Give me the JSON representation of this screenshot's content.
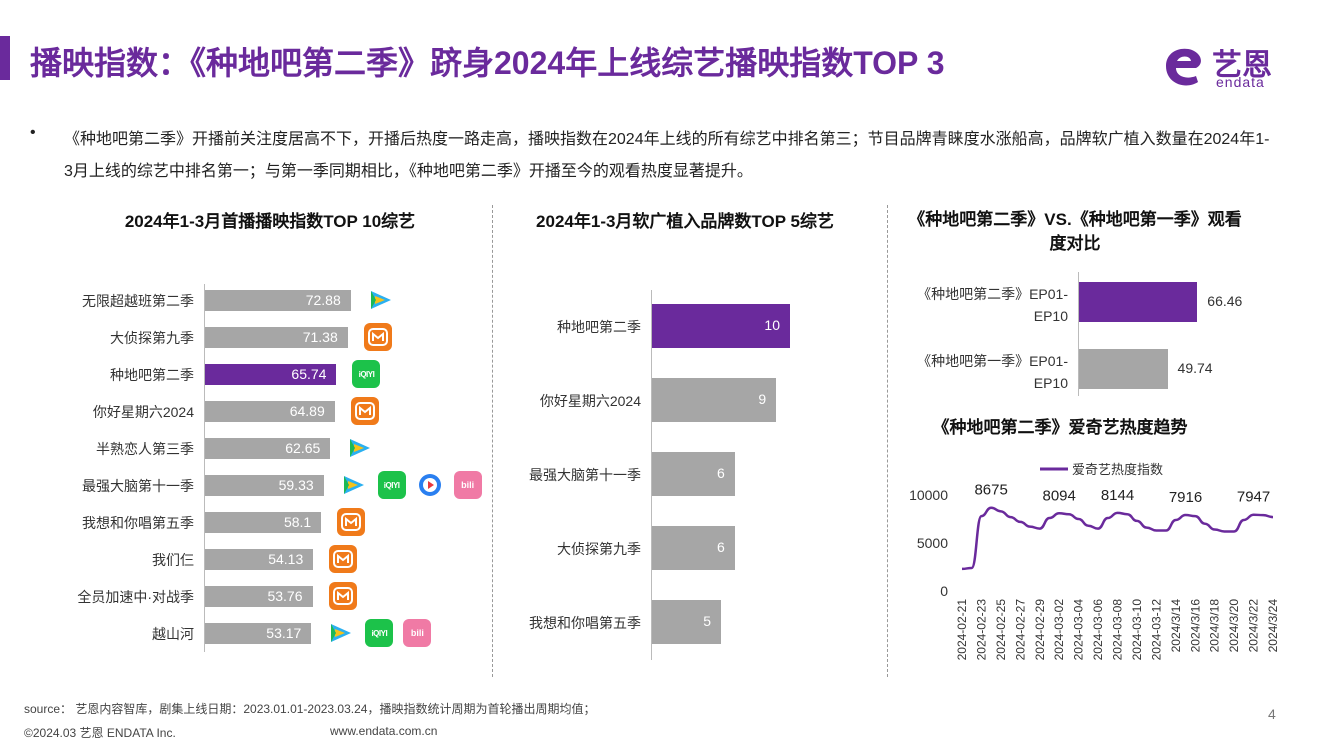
{
  "header": {
    "title": "播映指数：《种地吧第二季》跻身2024年上线综艺播映指数TOP 3",
    "logo_text": "艺恩",
    "logo_sub": "endata"
  },
  "summary": {
    "bullet": "•",
    "text": "《种地吧第二季》开播前关注度居高不下，开播后热度一路走高，播映指数在2024年上线的所有综艺中排名第三；节目品牌青睐度水涨船高，品牌软广植入数量在2024年1-3月上线的综艺中排名第一；与第一季同期相比，《种地吧第二季》开播至今的观看热度显著提升。"
  },
  "colors": {
    "accent": "#6a2a9c",
    "bar": "#a6a6a6"
  },
  "chart_data": [
    {
      "type": "bar",
      "title": "2024年1-3月首播播映指数TOP 10综艺",
      "categories": [
        "无限超越班第二季",
        "大侦探第九季",
        "种地吧第二季",
        "你好星期六2024",
        "半熟恋人第三季",
        "最强大脑第十一季",
        "我想和你唱第五季",
        "我们仨",
        "全员加速中·对战季",
        "越山河"
      ],
      "values": [
        72.88,
        71.38,
        65.74,
        64.89,
        62.65,
        59.33,
        58.1,
        54.13,
        53.76,
        53.17
      ],
      "value_labels": [
        "72.88",
        "71.38",
        "65.74",
        "64.89",
        "62.65",
        "59.33",
        "58.1",
        "54.13",
        "53.76",
        "53.17"
      ],
      "highlight": "种地吧第二季",
      "platform_icons": [
        [
          "tencent-icon"
        ],
        [
          "mango-icon"
        ],
        [
          "iqiyi-icon"
        ],
        [
          "mango-icon"
        ],
        [
          "tencent-icon"
        ],
        [
          "tencent-icon",
          "iqiyi-icon",
          "youku-icon",
          "bilibili-icon"
        ],
        [
          "mango-icon"
        ],
        [
          "mango-icon"
        ],
        [
          "mango-icon"
        ],
        [
          "tencent-icon",
          "iqiyi-icon",
          "bilibili-icon"
        ]
      ],
      "icon_text": {
        "iqiyi": "iQIYI",
        "bilibili": "bili"
      }
    },
    {
      "type": "bar",
      "title": "2024年1-3月软广植入品牌数TOP 5综艺",
      "categories": [
        "种地吧第二季",
        "你好星期六2024",
        "最强大脑第十一季",
        "大侦探第九季",
        "我想和你唱第五季"
      ],
      "values": [
        10,
        9,
        6,
        6,
        5
      ],
      "value_labels": [
        "10",
        "9",
        "6",
        "6",
        "5"
      ],
      "highlight": "种地吧第二季"
    },
    {
      "type": "bar",
      "title": "《种地吧第二季》VS.《种地吧第一季》观看度对比",
      "categories": [
        "《种地吧第二季》EP01-EP10",
        "《种地吧第一季》EP01-EP10"
      ],
      "values": [
        66.46,
        49.74
      ],
      "value_labels": [
        "66.46",
        "49.74"
      ],
      "highlight": "《种地吧第二季》EP01-EP10"
    },
    {
      "type": "line",
      "title": "《种地吧第二季》爱奇艺热度趋势",
      "series": [
        {
          "name": "爱奇艺热度指数",
          "x": [
            "2024-02-21",
            "2024-02-22",
            "2024-02-23",
            "2024-02-24",
            "2024-02-25",
            "2024-02-26",
            "2024-02-27",
            "2024-02-28",
            "2024-02-29",
            "2024-03-01",
            "2024-03-02",
            "2024-03-03",
            "2024-03-04",
            "2024-03-05",
            "2024-03-06",
            "2024-03-07",
            "2024-03-08",
            "2024-03-09",
            "2024-03-10",
            "2024-03-11",
            "2024-03-12",
            "2024-03-13",
            "2024-03-14",
            "2024/3/15",
            "2024/3/16",
            "2024/3/17",
            "2024/3/18",
            "2024/3/19",
            "2024/3/20",
            "2024/3/21",
            "2024/3/22",
            "2024/3/23",
            "2024/3/24"
          ],
          "values": [
            2300,
            2400,
            7800,
            8675,
            8300,
            7700,
            7200,
            6700,
            6500,
            7600,
            8094,
            8000,
            7500,
            6800,
            6500,
            7600,
            8144,
            8000,
            7300,
            6600,
            6300,
            6300,
            7400,
            7916,
            7800,
            7000,
            6400,
            6200,
            6200,
            7400,
            7947,
            7900,
            7700
          ]
        }
      ],
      "x_tick_labels": [
        "2024-02-21",
        "2024-02-23",
        "2024-02-25",
        "2024-02-27",
        "2024-02-29",
        "2024-03-02",
        "2024-03-04",
        "2024-03-06",
        "2024-03-08",
        "2024-03-10",
        "2024-03-12",
        "2024/3/14",
        "2024/3/16",
        "2024/3/18",
        "2024/3/20",
        "2024/3/22",
        "2024/3/24"
      ],
      "y_ticks": [
        "0",
        "5000",
        "10000"
      ],
      "ylim": [
        0,
        10000
      ],
      "annotations": [
        {
          "x": "2024-02-24",
          "label": "8675"
        },
        {
          "x": "2024-03-02",
          "label": "8094"
        },
        {
          "x": "2024-03-08",
          "label": "8144"
        },
        {
          "x": "2024/3/15",
          "label": "7916"
        },
        {
          "x": "2024/3/22",
          "label": "7947"
        }
      ],
      "legend": "top"
    }
  ],
  "footer": {
    "source": "source： 艺恩内容智库，剧集上线日期：2023.01.01-2023.03.24，播映指数统计周期为首轮播出周期均值；",
    "copyright": "©2024.03  艺恩 ENDATA Inc.",
    "website": "www.endata.com.cn",
    "page_number": "4"
  }
}
